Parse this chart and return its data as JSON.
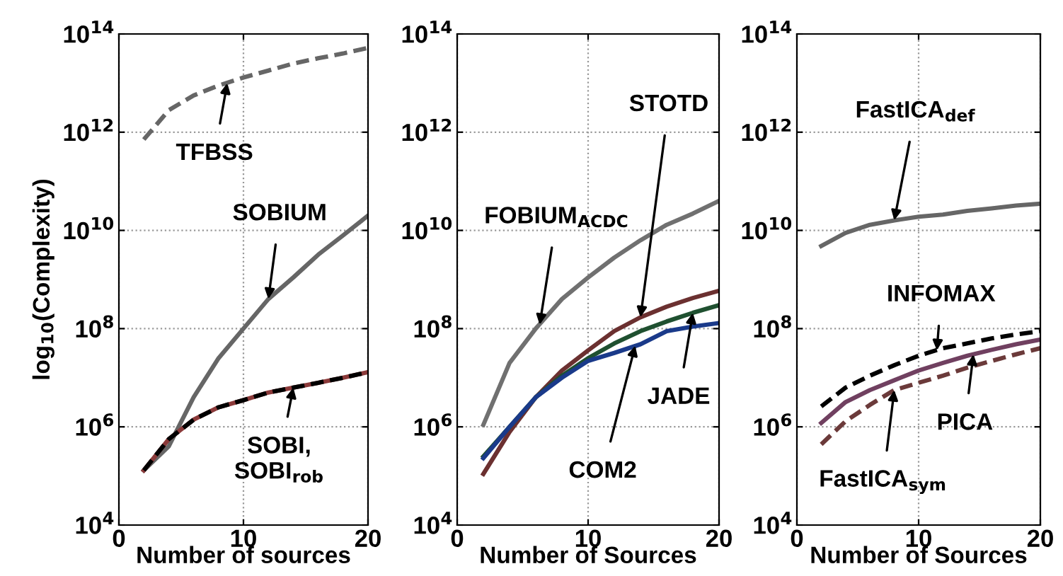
{
  "chart_data": [
    {
      "type": "line",
      "xlabel": "Number of sources",
      "ylabel": "log$_{10}$(Complexity)",
      "log": true,
      "grid": true,
      "xlim": [
        0,
        20
      ],
      "xticks": [
        0,
        10,
        20
      ],
      "ylim": [
        10000,
        100000000000000
      ],
      "yticks": [
        {
          "value": 10000,
          "label": "10$^{4}$"
        },
        {
          "value": 1000000,
          "label": "10$^{6}$"
        },
        {
          "value": 100000000,
          "label": "10$^{8}$"
        },
        {
          "value": 10000000000,
          "label": "10$^{10}$"
        },
        {
          "value": 1000000000000,
          "label": "10$^{12}$"
        },
        {
          "value": 100000000000000,
          "label": "10$^{14}$"
        }
      ],
      "x": [
        2,
        4,
        6,
        8,
        10,
        12,
        14,
        16,
        18,
        20
      ],
      "series": [
        {
          "color": "#666666",
          "line_style": "dashed",
          "values": [
            710000000000.0,
            2800000000000.0,
            5600000000000.0,
            8900000000000.0,
            13000000000000.0,
            18000000000000.0,
            25000000000000.0,
            32000000000000.0,
            40000000000000.0,
            52000000000000.0
          ]
        },
        {
          "color": "#666666",
          "line_style": "solid",
          "values": [
            130000.0,
            400000.0,
            4000000.0,
            25000000.0,
            100000000.0,
            400000000.0,
            1100000000.0,
            3200000000.0,
            7900000000.0,
            20000000000.0
          ]
        },
        {
          "color": "#8b3a3a",
          "line_style": "solid",
          "values": [
            130000.0,
            560000.0,
            1400000.0,
            2500000.0,
            3500000.0,
            5000000.0,
            6300000.0,
            7900000.0,
            10000000.0,
            13000000.0
          ]
        },
        {
          "color": "#000000",
          "line_style": "dashed",
          "values": [
            130000.0,
            560000.0,
            1400000.0,
            2500000.0,
            3500000.0,
            5000000.0,
            6300000.0,
            7900000.0,
            10000000.0,
            13000000.0
          ]
        }
      ],
      "annotations": [
        {
          "text": "TFBSS",
          "x": 8.7,
          "y": 10000000000000.0
        },
        {
          "text": "SOBIUM",
          "x": 12,
          "y": 400000000.0
        },
        {
          "text": "SOBI,\nSOBI$_{rob}$",
          "x": 14,
          "y": 6300000.0
        }
      ]
    },
    {
      "type": "line",
      "xlabel": "Number of Sources",
      "log": true,
      "grid": true,
      "xlim": [
        0,
        20
      ],
      "xticks": [
        0,
        10,
        20
      ],
      "ylim": [
        10000,
        100000000000000
      ],
      "yticks": [
        {
          "value": 10000,
          "label": "10$^{4}$"
        },
        {
          "value": 1000000,
          "label": "10$^{6}$"
        },
        {
          "value": 100000000,
          "label": "10$^{8}$"
        },
        {
          "value": 10000000000,
          "label": "10$^{10}$"
        },
        {
          "value": 1000000000000,
          "label": "10$^{12}$"
        },
        {
          "value": 100000000000000,
          "label": "10$^{14}$"
        }
      ],
      "x": [
        2,
        4,
        6,
        8,
        10,
        12,
        14,
        16,
        18,
        20
      ],
      "series": [
        {
          "color": "#707070",
          "line_style": "solid",
          "values": [
            1100000.0,
            20000000.0,
            100000000.0,
            400000000.0,
            1100000000.0,
            2800000000.0,
            6300000000.0,
            13000000000.0,
            22000000000.0,
            40000000000.0
          ]
        },
        {
          "color": "#6b3030",
          "line_style": "solid",
          "values": [
            110000.0,
            790000.0,
            4000000.0,
            14000000.0,
            36000000.0,
            89000000.0,
            170000000.0,
            280000000.0,
            420000000.0,
            590000000.0
          ]
        },
        {
          "color": "#1f5030",
          "line_style": "solid",
          "values": [
            250000.0,
            1000000.0,
            4000000.0,
            11000000.0,
            25000000.0,
            50000000.0,
            89000000.0,
            140000000.0,
            210000000.0,
            300000000.0
          ]
        },
        {
          "color": "#1a3a8a",
          "line_style": "solid",
          "values": [
            230000.0,
            1000000.0,
            4000000.0,
            10000000.0,
            22000000.0,
            32000000.0,
            48000000.0,
            89000000.0,
            110000000.0,
            130000000.0
          ]
        }
      ],
      "annotations": [
        {
          "text": "FOBIUM$_{ACDC}$",
          "x": 6.3,
          "y": 120000000.0
        },
        {
          "text": "STOTD",
          "x": 14,
          "y": 170000000.0
        },
        {
          "text": "JADE",
          "x": 18,
          "y": 210000000.0
        },
        {
          "text": "COM2",
          "x": 13.6,
          "y": 45000000.0
        }
      ]
    },
    {
      "type": "line",
      "xlabel": "Number of Sources",
      "log": true,
      "grid": true,
      "xlim": [
        0,
        20
      ],
      "xticks": [
        0,
        10,
        20
      ],
      "ylim": [
        10000,
        100000000000000
      ],
      "yticks": [
        {
          "value": 10000,
          "label": "10$^{4}$"
        },
        {
          "value": 1000000,
          "label": "10$^{6}$"
        },
        {
          "value": 100000000,
          "label": "10$^{8}$"
        },
        {
          "value": 10000000000,
          "label": "10$^{10}$"
        },
        {
          "value": 1000000000000,
          "label": "10$^{12}$"
        },
        {
          "value": 100000000000000,
          "label": "10$^{14}$"
        }
      ],
      "x": [
        2,
        4,
        6,
        8,
        10,
        12,
        14,
        16,
        18,
        20
      ],
      "series": [
        {
          "color": "#666666",
          "line_style": "solid",
          "values": [
            4800000000.0,
            8900000000.0,
            13000000000.0,
            16000000000.0,
            19000000000.0,
            21000000000.0,
            25000000000.0,
            28000000000.0,
            32000000000.0,
            35000000000.0
          ]
        },
        {
          "color": "#000000",
          "line_style": "dashed",
          "values": [
            2600000.0,
            6300000.0,
            11000000.0,
            18000000.0,
            28000000.0,
            40000000.0,
            50000000.0,
            63000000.0,
            76000000.0,
            89000000.0
          ]
        },
        {
          "color": "#704060",
          "line_style": "solid",
          "values": [
            1200000.0,
            3200000.0,
            5600000.0,
            8900000.0,
            14000000.0,
            20000000.0,
            28000000.0,
            37000000.0,
            48000000.0,
            60000000.0
          ]
        },
        {
          "color": "#6b3a3a",
          "line_style": "dashed",
          "values": [
            440000.0,
            1300000.0,
            2800000.0,
            5600000.0,
            7900000.0,
            11000000.0,
            16000000.0,
            22000000.0,
            30000000.0,
            40000000.0
          ]
        }
      ],
      "annotations": [
        {
          "text": "FastICA$_{def}$",
          "x": 8,
          "y": 16000000000.0
        },
        {
          "text": "INFOMAX",
          "x": 11.5,
          "y": 36000000.0
        },
        {
          "text": "PICA",
          "x": 14.5,
          "y": 30000000.0
        },
        {
          "text": "FastICA$_{sym}$",
          "x": 8,
          "y": 5600000.0
        }
      ]
    }
  ]
}
